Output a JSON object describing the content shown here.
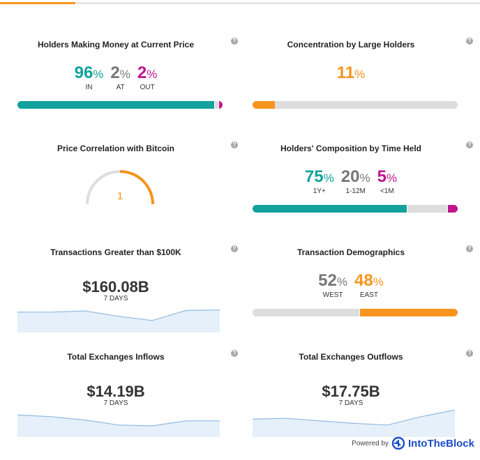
{
  "colors": {
    "teal": "#12a19c",
    "gray": "#777777",
    "magenta": "#c0158f",
    "orange": "#f7941d",
    "track": "#dddddd",
    "spark_line": "#8fb9e0",
    "spark_fill": "#e5f0fa",
    "brand": "#1b4cc7"
  },
  "help_glyph": "?",
  "cards": {
    "money": {
      "title": "Holders Making Money at Current Price",
      "metrics": [
        {
          "value": "96",
          "unit": "%",
          "label": "IN"
        },
        {
          "value": "2",
          "unit": "%",
          "label": "AT"
        },
        {
          "value": "2",
          "unit": "%",
          "label": "OUT"
        }
      ],
      "bar": [
        96,
        2,
        2
      ]
    },
    "concentration": {
      "title": "Concentration by Large Holders",
      "value": "11",
      "unit": "%",
      "bar": [
        11
      ]
    },
    "correlation": {
      "title": "Price Correlation with Bitcoin",
      "value": "1",
      "gauge_fraction": 1
    },
    "composition": {
      "title": "Holders' Composition by Time Held",
      "metrics": [
        {
          "value": "75",
          "unit": "%",
          "label": "1Y+"
        },
        {
          "value": "20",
          "unit": "%",
          "label": "1-12M"
        },
        {
          "value": "5",
          "unit": "%",
          "label": "<1M"
        }
      ],
      "bar": [
        75,
        20,
        5
      ]
    },
    "large_tx": {
      "title": "Transactions Greater than $100K",
      "value": "$160.08B",
      "sub": "7 DAYS",
      "spark": [
        0.55,
        0.55,
        0.62,
        0.3,
        0.05,
        0.65,
        0.68
      ]
    },
    "demographics": {
      "title": "Transaction Demographics",
      "metrics": [
        {
          "value": "52",
          "unit": "%",
          "label": "WEST"
        },
        {
          "value": "48",
          "unit": "%",
          "label": "EAST"
        }
      ],
      "bar": [
        52,
        48
      ]
    },
    "inflows": {
      "title": "Total Exchanges Inflows",
      "value": "$14.19B",
      "sub": "7 DAYS",
      "spark": [
        0.65,
        0.55,
        0.35,
        0.05,
        0.0,
        0.3,
        0.3
      ]
    },
    "outflows": {
      "title": "Total Exchanges Outflows",
      "value": "$17.75B",
      "sub": "7 DAYS",
      "spark": [
        0.4,
        0.45,
        0.3,
        0.15,
        0.05,
        0.55,
        0.95
      ]
    }
  },
  "footer": {
    "powered_by": "Powered by",
    "brand": "IntoTheBlock"
  }
}
